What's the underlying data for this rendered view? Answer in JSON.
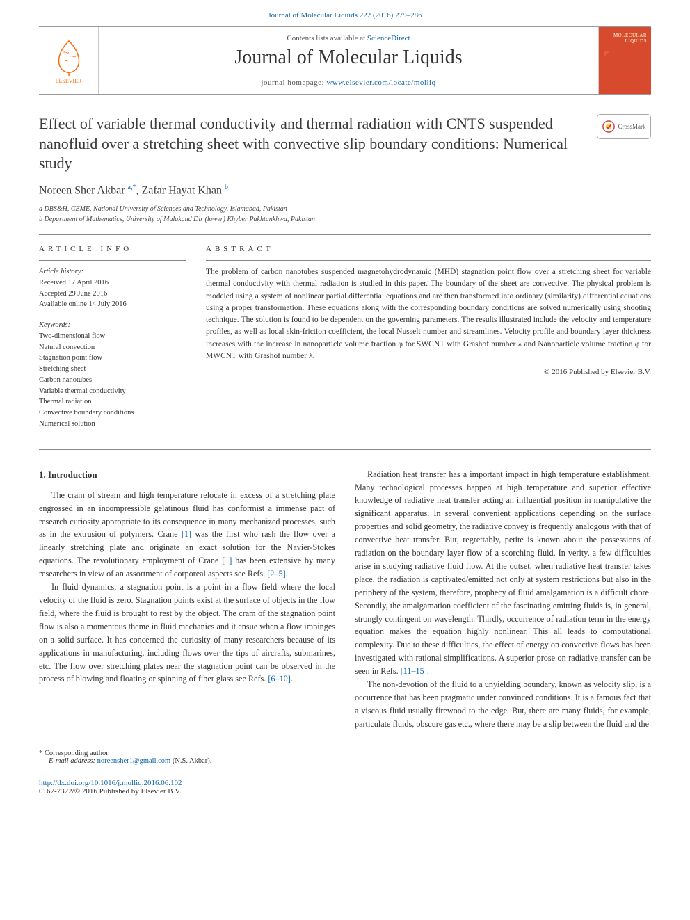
{
  "header_link": "Journal of Molecular Liquids 222 (2016) 279–286",
  "banner": {
    "contents_prefix": "Contents lists available at ",
    "contents_link": "ScienceDirect",
    "journal_name": "Journal of Molecular Liquids",
    "homepage_prefix": "journal homepage: ",
    "homepage_url": "www.elsevier.com/locate/molliq",
    "publisher": "ELSEVIER",
    "cover_text": "MOLECULAR LIQUIDS"
  },
  "crossmark_label": "CrossMark",
  "title": "Effect of variable thermal conductivity and thermal radiation with CNTS suspended nanofluid over a stretching sheet with convective slip boundary conditions: Numerical study",
  "authors_html": "Noreen Sher Akbar <sup>a,*</sup>, Zafar Hayat Khan <sup>b</sup>",
  "affiliations": [
    "a DBS&H, CEME, National University of Sciences and Technology, Islamabad, Pakistan",
    "b Department of Mathematics, University of Malakand Dir (lower) Khyber Pakhtunkhwa, Pakistan"
  ],
  "info": {
    "heading_info": "ARTICLE INFO",
    "heading_abstract": "ABSTRACT",
    "history_label": "Article history:",
    "history": [
      "Received 17 April 2016",
      "Accepted 29 June 2016",
      "Available online 14 July 2016"
    ],
    "keywords_label": "Keywords:",
    "keywords": [
      "Two-dimensional flow",
      "Natural convection",
      "Stagnation point flow",
      "Stretching sheet",
      "Carbon nanotubes",
      "Variable thermal conductivity",
      "Thermal radiation",
      "Convective boundary conditions",
      "Numerical solution"
    ]
  },
  "abstract": "The problem of carbon nanotubes suspended magnetohydrodynamic (MHD) stagnation point flow over a stretching sheet for variable thermal conductivity with thermal radiation is studied in this paper. The boundary of the sheet are convective. The physical problem is modeled using a system of nonlinear partial differential equations and are then transformed into ordinary (similarity) differential equations using a proper transformation. These equations along with the corresponding boundary conditions are solved numerically using shooting technique. The solution is found to be dependent on the governing parameters. The results illustrated include the velocity and temperature profiles, as well as local skin-friction coefficient, the local Nusselt number and streamlines. Velocity profile and boundary layer thickness increases with the increase in nanoparticle volume fraction φ for SWCNT with Grashof number λ and Nanoparticle volume fraction φ for MWCNT with Grashof number λ.",
  "copyright": "© 2016 Published by Elsevier B.V.",
  "section_heading": "1. Introduction",
  "left_paras": [
    "The cram of stream and high temperature relocate in excess of a stretching plate engrossed in an incompressible gelatinous fluid has conformist a immense pact of research curiosity appropriate to its consequence in many mechanized processes, such as in the extrusion of polymers. Crane [1] was the first who rash the flow over a linearly stretching plate and originate an exact solution for the Navier-Stokes equations. The revolutionary employment of Crane [1] has been extensive by many researchers in view of an assortment of corporeal aspects see Refs. [2–5].",
    "In fluid dynamics, a stagnation point is a point in a flow field where the local velocity of the fluid is zero. Stagnation points exist at the surface of objects in the flow field, where the fluid is brought to rest by the object. The cram of the stagnation point flow is also a momentous theme in fluid mechanics and it ensue when a flow impinges on a solid surface. It has concerned the curiosity of many researchers because of its applications in manufacturing, including flows over the tips of aircrafts, submarines, etc. The flow over stretching plates near the stagnation point can be observed in the process of blowing and floating or spinning of fiber glass see Refs. [6–10]."
  ],
  "right_paras": [
    "Radiation heat transfer has a important impact in high temperature establishment. Many technological processes happen at high temperature and superior effective knowledge of radiative heat transfer acting an influential position in manipulative the significant apparatus. In several convenient applications depending on the surface properties and solid geometry, the radiative convey is frequently analogous with that of convective heat transfer. But, regrettably, petite is known about the possessions of radiation on the boundary layer flow of a scorching fluid. In verity, a few difficulties arise in studying radiative fluid flow. At the outset, when radiative heat transfer takes place, the radiation is captivated/emitted not only at system restrictions but also in the periphery of the system, therefore, prophecy of fluid amalgamation is a difficult chore. Secondly, the amalgamation coefficient of the fascinating emitting fluids is, in general, strongly contingent on wavelength. Thirdly, occurrence of radiation term in the energy equation makes the equation highly nonlinear. This all leads to computational complexity. Due to these difficulties, the effect of energy on convective flows has been investigated with rational simplifications. A superior prose on radiative transfer can be seen in Refs. [11–15].",
    "The non-devotion of the fluid to a unyielding boundary, known as velocity slip, is a occurrence that has been pragmatic under convinced conditions. It is a famous fact that a viscous fluid usually firewood to the edge. But, there are many fluids, for example, particulate fluids, obscure gas etc., where there may be a slip between the fluid and the"
  ],
  "corresponding": {
    "label": "* Corresponding author.",
    "email_label": "E-mail address:",
    "email": "noreensher1@gmail.com",
    "name": "(N.S. Akbar)."
  },
  "doi": {
    "url": "http://dx.doi.org/10.1016/j.molliq.2016.06.102",
    "issn_line": "0167-7322/© 2016 Published by Elsevier B.V."
  },
  "refs": {
    "r1": "[1]",
    "r2_5": "[2–5]",
    "r6_10": "[6–10]",
    "r11_15": "[11–15]"
  },
  "colors": {
    "link": "#1166aa",
    "elsevier": "#ff6600",
    "cover_bg": "#d84a2e",
    "text": "#333333"
  }
}
